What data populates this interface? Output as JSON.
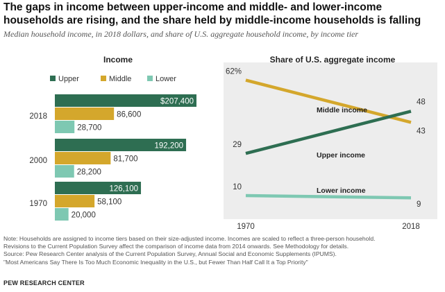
{
  "title": "The gaps in income between upper-income and middle- and lower-income households are rising, and the share held by middle-income households is falling",
  "subtitle": "Median household income, in 2018 dollars, and share of U.S. aggregate household income, by income tier",
  "chart_data": [
    {
      "type": "bar",
      "orientation": "horizontal",
      "title": "Income",
      "categories": [
        "2018",
        "2000",
        "1970"
      ],
      "legend_position": "top",
      "series": [
        {
          "name": "Upper",
          "color": "#2e6e52",
          "values": [
            207400,
            192200,
            126100
          ],
          "labels": [
            "$207,400",
            "192,200",
            "126,100"
          ]
        },
        {
          "name": "Middle",
          "color": "#d4a72c",
          "values": [
            86600,
            81700,
            58100
          ],
          "labels": [
            "86,600",
            "81,700",
            "58,100"
          ]
        },
        {
          "name": "Lower",
          "color": "#7ec8b2",
          "values": [
            28700,
            28200,
            20000
          ],
          "labels": [
            "28,700",
            "28,200",
            "20,000"
          ]
        }
      ],
      "xlim": [
        0,
        207400
      ]
    },
    {
      "type": "line",
      "title": "Share of U.S. aggregate income",
      "x": [
        "1970",
        "2018"
      ],
      "ylim": [
        0,
        70
      ],
      "background": "#ededed",
      "series": [
        {
          "name": "Middle income",
          "color": "#d4a72c",
          "values": [
            62,
            43
          ],
          "start_label": "62%",
          "end_label": "43"
        },
        {
          "name": "Upper income",
          "color": "#2e6e52",
          "values": [
            29,
            48
          ],
          "start_label": "29",
          "end_label": "48"
        },
        {
          "name": "Lower income",
          "color": "#7ec8b2",
          "values": [
            10,
            9
          ],
          "start_label": "10",
          "end_label": "9"
        }
      ]
    }
  ],
  "notes": [
    "Note: Households are assigned to income tiers based on their size-adjusted income. Incomes are scaled to reflect a three-person household.",
    "Revisions to the Current Population Survey affect the comparison of income data from 2014 onwards. See Methodology for details.",
    "Source: Pew Research Center analysis of the Current Population Survey, Annual Social and Economic Supplements (IPUMS).",
    "\"Most Americans Say There Is Too Much Economic Inequality in the U.S., but Fewer Than Half Call It a Top Priority\""
  ],
  "brand": "PEW RESEARCH CENTER"
}
